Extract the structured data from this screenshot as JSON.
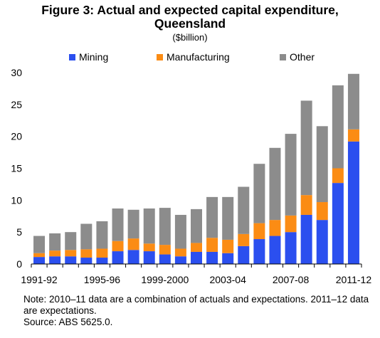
{
  "title_line1": "Figure 3: Actual and expected capital expenditure,",
  "title_line2": "Queensland",
  "unit": "($billion)",
  "note": "Note: 2010–11 data are a combination of actuals and expectations. 2011–12 data are expectations.",
  "source": "Source: ABS 5625.0.",
  "colors": {
    "Mining": "#2b4fef",
    "Manufacturing": "#fb8c14",
    "Other": "#8c8c8c"
  },
  "chart_data": {
    "type": "bar",
    "stacked": true,
    "categories": [
      "1991-92",
      "1992-93",
      "1993-94",
      "1994-95",
      "1995-96",
      "1996-97",
      "1997-98",
      "1998-99",
      "1999-2000",
      "2000-01",
      "2001-02",
      "2002-03",
      "2003-04",
      "2004-05",
      "2005-06",
      "2006-07",
      "2007-08",
      "2008-09",
      "2009-10",
      "2010-11",
      "2011-12"
    ],
    "tick_labels": [
      "1991-92",
      "1995-96",
      "1999-2000",
      "2003-04",
      "2007-08",
      "2011-12"
    ],
    "tick_label_indices": [
      0,
      4,
      8,
      12,
      16,
      20
    ],
    "series": [
      {
        "name": "Mining",
        "values": [
          1.1,
          1.2,
          1.2,
          1.0,
          1.0,
          2.0,
          2.2,
          2.0,
          1.5,
          1.2,
          1.9,
          1.9,
          1.7,
          2.8,
          3.9,
          4.4,
          5.0,
          7.7,
          6.9,
          12.7,
          19.2
        ]
      },
      {
        "name": "Manufacturing",
        "values": [
          0.6,
          0.9,
          1.0,
          1.3,
          1.4,
          1.6,
          1.8,
          1.2,
          1.5,
          1.2,
          1.4,
          2.2,
          2.1,
          1.9,
          2.5,
          2.5,
          2.6,
          3.1,
          2.8,
          2.3,
          1.9
        ]
      },
      {
        "name": "Other",
        "values": [
          2.7,
          2.7,
          2.8,
          4.0,
          4.3,
          5.1,
          4.5,
          5.5,
          5.8,
          5.3,
          5.3,
          6.4,
          6.7,
          7.4,
          9.3,
          11.3,
          12.8,
          14.8,
          11.9,
          13.0,
          8.7
        ]
      }
    ],
    "ylim": [
      0,
      30
    ],
    "yticks": [
      0,
      5,
      10,
      15,
      20,
      25,
      30
    ],
    "legend_position": "top",
    "grid": false
  }
}
